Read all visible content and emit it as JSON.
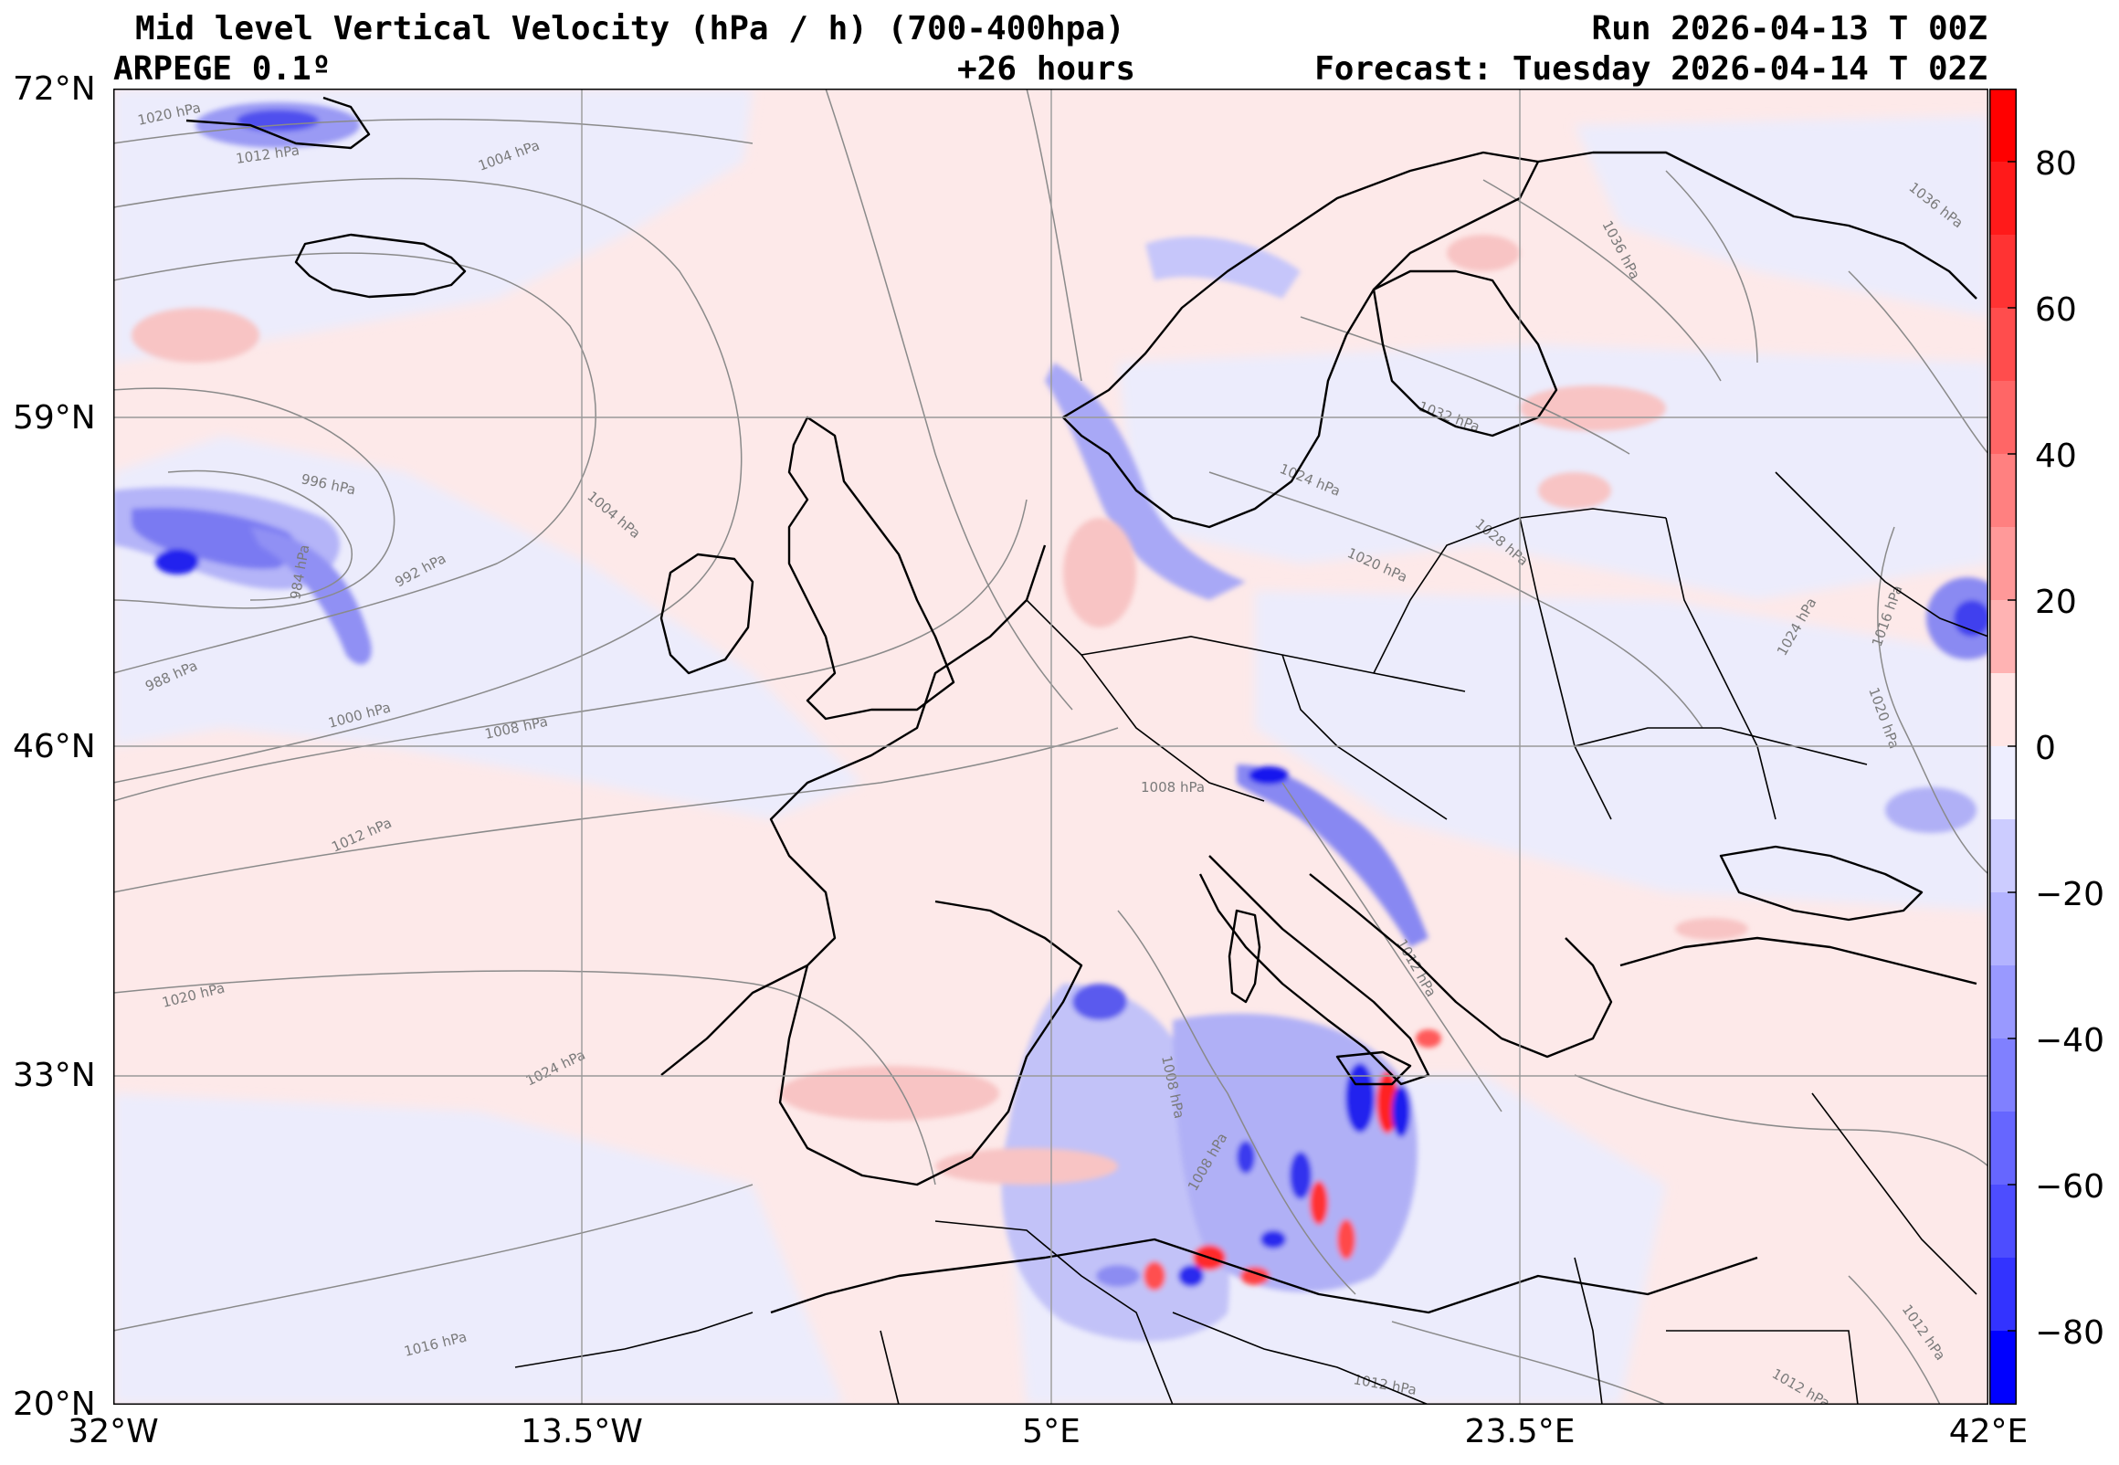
{
  "header": {
    "title_line1": "Mid level Vertical Velocity (hPa / h)  (700-400hpa)",
    "title_line2_left": "ARPEGE 0.1º",
    "title_line2_center": "+26 hours",
    "run": "Run 2026-04-13 T 00Z",
    "forecast": "Forecast: Tuesday 2026-04-14 T 02Z"
  },
  "axes": {
    "lat_ticks": [
      "72°N",
      "59°N",
      "46°N",
      "33°N",
      "20°N"
    ],
    "lon_ticks": [
      "32°W",
      "13.5°W",
      "5°E",
      "23.5°E",
      "42°E"
    ]
  },
  "colorbar": {
    "ticks": [
      "80",
      "60",
      "40",
      "20",
      "0",
      "−20",
      "−40",
      "−60",
      "−80"
    ],
    "colors": {
      "positive_strong": "#ff0000",
      "positive_mid": "#ff7777",
      "positive_weak": "#ffe6e6",
      "negative_weak": "#eeeeff",
      "negative_mid": "#8888ff",
      "negative_strong": "#0000ff"
    }
  },
  "isobar_labels": [
    "1020 hPa",
    "1012 hPa",
    "1004 hPa",
    "996 hPa",
    "992 hPa",
    "988 hPa",
    "984 hPa",
    "1000 hPa",
    "1008 hPa",
    "1012 hPa",
    "1020 hPa",
    "1024 hPa",
    "1016 hPa",
    "1004 hPa",
    "1008 hPa",
    "1012 hPa",
    "1008 hPa",
    "1008 hPa",
    "1012 hPa",
    "1032 hPa",
    "1024 hPa",
    "1020 hPa",
    "1028 hPa",
    "1036 hPa",
    "1036 hPa",
    "1024 hPa",
    "1016 hPa",
    "1020 hPa",
    "1012 hPa",
    "1012 hPa"
  ]
}
